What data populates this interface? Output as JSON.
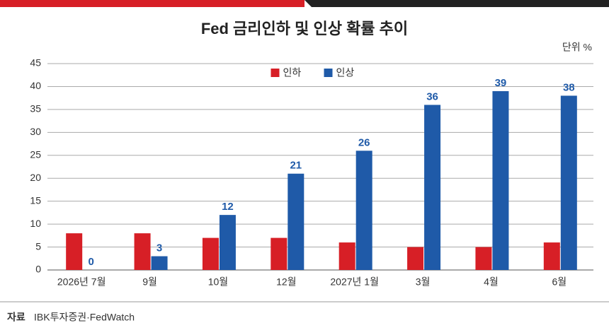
{
  "chart_data": {
    "type": "bar",
    "title": "Fed 금리인하 및 인상 확률 추이",
    "unit": "단위 %",
    "categories": [
      "2026년 7월",
      "9월",
      "10월",
      "12월",
      "2027년 1월",
      "3월",
      "4월",
      "6월"
    ],
    "series": [
      {
        "name": "인하",
        "color": "#d71f26",
        "values": [
          8,
          8,
          7,
          7,
          6,
          5,
          5,
          6
        ]
      },
      {
        "name": "인상",
        "color": "#1f5aa8",
        "values": [
          0,
          3,
          12,
          21,
          26,
          36,
          39,
          38
        ],
        "show_labels": true
      }
    ],
    "ylim": [
      0,
      45
    ],
    "yticks": [
      0,
      5,
      10,
      15,
      20,
      25,
      30,
      35,
      40,
      45
    ],
    "grid": true,
    "legend": "top-center",
    "source_label": "자료",
    "source_text": "IBK투자증권·FedWatch"
  }
}
